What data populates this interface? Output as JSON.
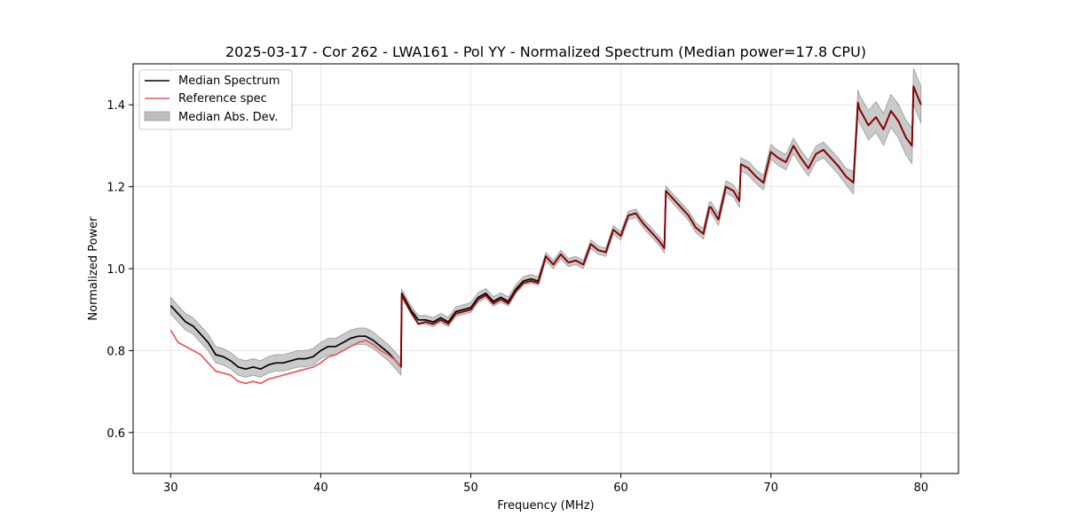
{
  "chart_data": {
    "type": "line",
    "title": "2025-03-17 - Cor 262 - LWA161 - Pol YY - Normalized Spectrum (Median power=17.8 CPU)",
    "xlabel": "Frequency (MHz)",
    "ylabel": "Normalized Power",
    "xlim": [
      27.5,
      82.5
    ],
    "ylim": [
      0.5,
      1.5
    ],
    "xticks": [
      30,
      40,
      50,
      60,
      70,
      80
    ],
    "yticks": [
      0.6,
      0.8,
      1.0,
      1.2,
      1.4
    ],
    "xtick_labels": [
      "30",
      "40",
      "50",
      "60",
      "70",
      "80"
    ],
    "ytick_labels": [
      "0.6",
      "0.8",
      "1.0",
      "1.2",
      "1.4"
    ],
    "grid": true,
    "legend_position": "top-left",
    "legend": [
      "Median Spectrum",
      "Reference spec",
      "Median Abs. Dev."
    ],
    "colors": {
      "median": "#000000",
      "reference": "#e8585a",
      "reference_overlap": "#8b0000",
      "mad_fill": "#bdbdbd",
      "grid": "#e6e6e6"
    },
    "series": [
      {
        "name": "Median Spectrum",
        "x": [
          30.0,
          30.5,
          31.0,
          31.5,
          32.0,
          32.5,
          33.0,
          33.5,
          34.0,
          34.5,
          35.0,
          35.5,
          36.0,
          36.5,
          37.0,
          37.5,
          38.0,
          38.5,
          39.0,
          39.5,
          40.0,
          40.5,
          41.0,
          41.5,
          42.0,
          42.5,
          43.0,
          43.5,
          44.0,
          44.5,
          45.0,
          45.35,
          45.4,
          46.0,
          46.5,
          47.0,
          47.5,
          48.0,
          48.5,
          49.0,
          49.5,
          50.0,
          50.5,
          51.0,
          51.5,
          52.0,
          52.5,
          53.0,
          53.5,
          54.0,
          54.5,
          55.0,
          55.5,
          56.0,
          56.5,
          57.0,
          57.5,
          58.0,
          58.5,
          59.0,
          59.5,
          60.0,
          60.5,
          61.0,
          61.5,
          62.0,
          62.5,
          62.9,
          63.0,
          63.5,
          64.0,
          64.5,
          65.0,
          65.5,
          65.9,
          66.0,
          66.5,
          67.0,
          67.5,
          67.9,
          68.0,
          68.5,
          69.0,
          69.5,
          70.0,
          70.5,
          71.0,
          71.5,
          72.0,
          72.5,
          73.0,
          73.5,
          74.0,
          74.5,
          75.0,
          75.5,
          75.8,
          75.9,
          76.5,
          77.0,
          77.5,
          78.0,
          78.5,
          79.0,
          79.4,
          79.5,
          80.0
        ],
        "values": [
          0.91,
          0.89,
          0.87,
          0.86,
          0.84,
          0.82,
          0.79,
          0.785,
          0.775,
          0.76,
          0.755,
          0.76,
          0.755,
          0.765,
          0.77,
          0.77,
          0.775,
          0.78,
          0.78,
          0.785,
          0.8,
          0.81,
          0.81,
          0.82,
          0.83,
          0.835,
          0.835,
          0.825,
          0.81,
          0.795,
          0.775,
          0.76,
          0.94,
          0.9,
          0.875,
          0.875,
          0.87,
          0.88,
          0.87,
          0.895,
          0.9,
          0.905,
          0.93,
          0.94,
          0.92,
          0.93,
          0.92,
          0.95,
          0.97,
          0.975,
          0.97,
          1.03,
          1.01,
          1.035,
          1.015,
          1.02,
          1.01,
          1.06,
          1.045,
          1.04,
          1.095,
          1.08,
          1.13,
          1.135,
          1.11,
          1.09,
          1.07,
          1.05,
          1.19,
          1.17,
          1.15,
          1.13,
          1.1,
          1.085,
          1.15,
          1.15,
          1.12,
          1.2,
          1.19,
          1.165,
          1.255,
          1.245,
          1.225,
          1.21,
          1.285,
          1.27,
          1.26,
          1.3,
          1.27,
          1.245,
          1.28,
          1.29,
          1.27,
          1.25,
          1.225,
          1.21,
          1.405,
          1.39,
          1.35,
          1.37,
          1.34,
          1.385,
          1.36,
          1.32,
          1.3,
          1.445,
          1.4
        ]
      },
      {
        "name": "Reference spec",
        "x": [
          30.0,
          30.5,
          31.0,
          31.5,
          32.0,
          32.5,
          33.0,
          33.5,
          34.0,
          34.5,
          35.0,
          35.5,
          36.0,
          36.5,
          37.0,
          37.5,
          38.0,
          38.5,
          39.0,
          39.5,
          40.0,
          40.5,
          41.0,
          41.5,
          42.0,
          42.5,
          43.0,
          43.5,
          44.0,
          44.5,
          45.0,
          45.35,
          45.4,
          46.0,
          46.5,
          47.0,
          47.5,
          48.0,
          48.5,
          49.0,
          49.5,
          50.0,
          50.5,
          51.0,
          51.5,
          52.0,
          52.5,
          53.0,
          53.5,
          54.0,
          54.5,
          55.0,
          55.5,
          56.0,
          56.5,
          57.0,
          57.5,
          58.0,
          58.5,
          59.0,
          59.5,
          60.0,
          60.5,
          61.0,
          61.5,
          62.0,
          62.5,
          62.9,
          63.0,
          63.5,
          64.0,
          64.5,
          65.0,
          65.5,
          65.9,
          66.0,
          66.5,
          67.0,
          67.5,
          67.9,
          68.0,
          68.5,
          69.0,
          69.5,
          70.0,
          70.5,
          71.0,
          71.5,
          72.0,
          72.5,
          73.0,
          73.5,
          74.0,
          74.5,
          75.0,
          75.5,
          75.8,
          75.9,
          76.5,
          77.0,
          77.5,
          78.0,
          78.5,
          79.0,
          79.4,
          79.5,
          80.0
        ],
        "values": [
          0.85,
          0.82,
          0.81,
          0.8,
          0.79,
          0.77,
          0.75,
          0.745,
          0.74,
          0.725,
          0.72,
          0.725,
          0.72,
          0.73,
          0.735,
          0.74,
          0.745,
          0.75,
          0.755,
          0.76,
          0.77,
          0.785,
          0.79,
          0.8,
          0.81,
          0.82,
          0.825,
          0.815,
          0.8,
          0.79,
          0.775,
          0.76,
          0.935,
          0.895,
          0.865,
          0.87,
          0.865,
          0.875,
          0.865,
          0.89,
          0.895,
          0.9,
          0.925,
          0.935,
          0.915,
          0.925,
          0.915,
          0.945,
          0.965,
          0.97,
          0.965,
          1.03,
          1.01,
          1.035,
          1.015,
          1.02,
          1.01,
          1.06,
          1.045,
          1.04,
          1.095,
          1.08,
          1.13,
          1.135,
          1.11,
          1.09,
          1.07,
          1.05,
          1.19,
          1.17,
          1.15,
          1.13,
          1.1,
          1.085,
          1.15,
          1.15,
          1.12,
          1.2,
          1.19,
          1.165,
          1.255,
          1.245,
          1.225,
          1.21,
          1.285,
          1.27,
          1.26,
          1.3,
          1.27,
          1.245,
          1.28,
          1.29,
          1.27,
          1.25,
          1.225,
          1.21,
          1.405,
          1.39,
          1.35,
          1.37,
          1.34,
          1.385,
          1.36,
          1.32,
          1.3,
          1.445,
          1.4
        ]
      },
      {
        "name": "Median Abs. Dev.",
        "x": [
          30.0,
          32.0,
          34.0,
          36.0,
          38.0,
          40.0,
          42.0,
          44.0,
          45.35,
          45.4,
          50.0,
          55.0,
          60.0,
          65.0,
          70.0,
          75.0,
          76.0,
          80.0
        ],
        "values": [
          0.02,
          0.02,
          0.02,
          0.02,
          0.02,
          0.02,
          0.02,
          0.02,
          0.02,
          0.01,
          0.012,
          0.01,
          0.01,
          0.012,
          0.018,
          0.02,
          0.035,
          0.045
        ]
      }
    ]
  }
}
